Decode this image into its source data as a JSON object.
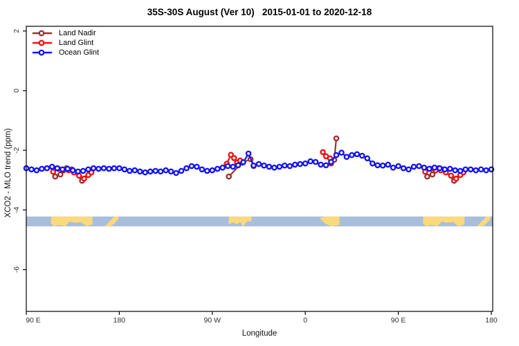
{
  "chart_data": {
    "type": "line",
    "title": "35S-30S August (Ver 10)   2015-01-01 to 2020-12-18",
    "xlabel": "Longitude",
    "ylabel": "XCO2 - MLO trend (ppm)",
    "x_axis": {
      "xlim": [
        90,
        540
      ],
      "note": "longitude axis spans 450 deg wrapping eastward from 90E through 180, 90W, 0, 90E to 180",
      "ticks": [
        {
          "lon": 90,
          "label": "90 E"
        },
        {
          "lon": 180,
          "label": "180"
        },
        {
          "lon": 270,
          "label": "90 W"
        },
        {
          "lon": 360,
          "label": "0"
        },
        {
          "lon": 450,
          "label": "90 E"
        },
        {
          "lon": 540,
          "label": "180"
        }
      ]
    },
    "y_axis": {
      "ylim": [
        -7.4,
        2.16
      ],
      "ticks": [
        {
          "v": 2,
          "label": "2"
        },
        {
          "v": 0,
          "label": "0"
        },
        {
          "v": -2,
          "label": "-2"
        },
        {
          "v": -4,
          "label": "-4"
        },
        {
          "v": -6,
          "label": "-6"
        }
      ]
    },
    "legend": {
      "position": "top-left",
      "entries": [
        "Land Nadir",
        "Land Glint",
        "Ocean Glint"
      ]
    },
    "series": [
      {
        "name": "Land Nadir",
        "color": "#9b3030",
        "clusters": [
          [
            [
              118,
              -2.88
            ],
            [
              123,
              -2.81
            ],
            [
              129,
              -2.6
            ],
            [
              134,
              -2.64
            ],
            [
              144,
              -3.02
            ]
          ],
          [
            [
              286,
              -2.88
            ],
            [
              299,
              -2.41
            ],
            [
              307,
              -2.3
            ],
            [
              310,
              -2.53
            ]
          ],
          [
            [
              385,
              -2.44
            ],
            [
              388,
              -2.32
            ],
            [
              390,
              -1.6
            ]
          ],
          [
            [
              478,
              -2.88
            ],
            [
              483,
              -2.81
            ],
            [
              489,
              -2.6
            ],
            [
              494,
              -2.64
            ],
            [
              504,
              -3.02
            ]
          ]
        ]
      },
      {
        "name": "Land Glint",
        "color": "#ee1111",
        "clusters": [
          [
            [
              116,
              -2.72
            ],
            [
              121,
              -2.62
            ],
            [
              126,
              -2.67
            ],
            [
              131,
              -2.67
            ],
            [
              136,
              -2.74
            ],
            [
              141,
              -2.85
            ],
            [
              146,
              -2.95
            ],
            [
              150,
              -2.83
            ],
            [
              153,
              -2.74
            ]
          ],
          [
            [
              284,
              -2.45
            ],
            [
              288,
              -2.15
            ],
            [
              291,
              -2.26
            ],
            [
              294,
              -2.41
            ],
            [
              297,
              -2.34
            ]
          ],
          [
            [
              377,
              -2.06
            ],
            [
              380,
              -2.2
            ],
            [
              384,
              -2.27
            ]
          ],
          [
            [
              476,
              -2.72
            ],
            [
              481,
              -2.62
            ],
            [
              486,
              -2.67
            ],
            [
              491,
              -2.67
            ],
            [
              496,
              -2.74
            ],
            [
              501,
              -2.85
            ],
            [
              506,
              -2.95
            ],
            [
              510,
              -2.83
            ],
            [
              513,
              -2.74
            ]
          ]
        ]
      },
      {
        "name": "Ocean Glint",
        "color": "#1414ee",
        "clusters": [
          [
            [
              90,
              -2.6
            ],
            [
              95,
              -2.64
            ],
            [
              100,
              -2.67
            ],
            [
              105,
              -2.62
            ],
            [
              110,
              -2.6
            ],
            [
              115,
              -2.55
            ],
            [
              120,
              -2.6
            ],
            [
              125,
              -2.64
            ],
            [
              130,
              -2.62
            ],
            [
              135,
              -2.67
            ],
            [
              140,
              -2.71
            ],
            [
              145,
              -2.69
            ],
            [
              150,
              -2.64
            ],
            [
              155,
              -2.6
            ],
            [
              160,
              -2.62
            ],
            [
              165,
              -2.6
            ],
            [
              170,
              -2.62
            ],
            [
              175,
              -2.6
            ],
            [
              180,
              -2.6
            ],
            [
              185,
              -2.64
            ],
            [
              190,
              -2.69
            ],
            [
              195,
              -2.67
            ],
            [
              200,
              -2.71
            ],
            [
              205,
              -2.74
            ],
            [
              210,
              -2.71
            ],
            [
              215,
              -2.69
            ],
            [
              220,
              -2.71
            ],
            [
              225,
              -2.67
            ],
            [
              230,
              -2.71
            ],
            [
              235,
              -2.76
            ],
            [
              240,
              -2.69
            ],
            [
              245,
              -2.6
            ],
            [
              250,
              -2.53
            ],
            [
              255,
              -2.55
            ],
            [
              260,
              -2.64
            ],
            [
              265,
              -2.69
            ],
            [
              270,
              -2.67
            ],
            [
              275,
              -2.62
            ],
            [
              280,
              -2.58
            ],
            [
              285,
              -2.53
            ],
            [
              290,
              -2.55
            ],
            [
              295,
              -2.5
            ],
            [
              300,
              -2.4
            ],
            [
              305,
              -2.11
            ],
            [
              310,
              -2.51
            ],
            [
              315,
              -2.46
            ],
            [
              320,
              -2.51
            ],
            [
              325,
              -2.55
            ],
            [
              330,
              -2.58
            ],
            [
              335,
              -2.55
            ],
            [
              340,
              -2.51
            ],
            [
              345,
              -2.53
            ],
            [
              350,
              -2.48
            ],
            [
              355,
              -2.46
            ],
            [
              360,
              -2.44
            ],
            [
              365,
              -2.37
            ],
            [
              370,
              -2.39
            ],
            [
              375,
              -2.48
            ],
            [
              380,
              -2.5
            ],
            [
              385,
              -2.39
            ],
            [
              390,
              -2.16
            ],
            [
              395,
              -2.08
            ],
            [
              400,
              -2.22
            ],
            [
              405,
              -2.16
            ],
            [
              410,
              -2.13
            ],
            [
              415,
              -2.18
            ],
            [
              420,
              -2.27
            ],
            [
              425,
              -2.44
            ],
            [
              430,
              -2.5
            ],
            [
              435,
              -2.51
            ],
            [
              440,
              -2.48
            ],
            [
              445,
              -2.58
            ],
            [
              450,
              -2.53
            ],
            [
              455,
              -2.6
            ],
            [
              460,
              -2.64
            ],
            [
              465,
              -2.55
            ],
            [
              470,
              -2.53
            ],
            [
              475,
              -2.58
            ],
            [
              480,
              -2.62
            ],
            [
              485,
              -2.58
            ],
            [
              490,
              -2.6
            ],
            [
              495,
              -2.64
            ],
            [
              500,
              -2.62
            ],
            [
              505,
              -2.67
            ],
            [
              510,
              -2.69
            ],
            [
              515,
              -2.64
            ],
            [
              520,
              -2.64
            ],
            [
              525,
              -2.67
            ],
            [
              530,
              -2.64
            ],
            [
              535,
              -2.67
            ],
            [
              540,
              -2.64
            ]
          ]
        ]
      }
    ],
    "land_ocean_band": {
      "ocean_color": "#a9bedb",
      "land_color": "#fbd97e",
      "value_top": -4.22,
      "value_bottom": -4.55,
      "land_patches": [
        {
          "region": "Australia",
          "from": 114,
          "to": 154,
          "poly": [
            [
              0,
              0
            ],
            [
              1,
              0
            ],
            [
              1,
              0.8
            ],
            [
              0.86,
              1
            ],
            [
              0.72,
              0.55
            ],
            [
              0.58,
              0.65
            ],
            [
              0.45,
              0.5
            ],
            [
              0.34,
              1
            ],
            [
              0.18,
              0.85
            ],
            [
              0.08,
              1
            ],
            [
              0,
              0.75
            ]
          ]
        },
        {
          "region": "New Zealand",
          "from": 166,
          "to": 179,
          "poly": [
            [
              0,
              1
            ],
            [
              0.35,
              0.5
            ],
            [
              0.7,
              0
            ],
            [
              1,
              0
            ],
            [
              1,
              0.3
            ],
            [
              0.55,
              0.9
            ],
            [
              0.3,
              1
            ]
          ]
        },
        {
          "region": "South America",
          "from": 286,
          "to": 308,
          "poly": [
            [
              0,
              0
            ],
            [
              1,
              0
            ],
            [
              1,
              0.45
            ],
            [
              0.8,
              0.5
            ],
            [
              0.62,
              1
            ],
            [
              0.5,
              0.55
            ],
            [
              0.35,
              0.8
            ],
            [
              0.18,
              0.6
            ],
            [
              0,
              0.8
            ]
          ]
        },
        {
          "region": "Southern Africa",
          "from": 374,
          "to": 393,
          "poly": [
            [
              0,
              0.15
            ],
            [
              0.3,
              0
            ],
            [
              1,
              0
            ],
            [
              1,
              0.85
            ],
            [
              0.6,
              1
            ],
            [
              0.25,
              0.7
            ]
          ]
        },
        {
          "region": "Australia",
          "from": 474,
          "to": 514,
          "poly": [
            [
              0,
              0
            ],
            [
              1,
              0
            ],
            [
              1,
              0.8
            ],
            [
              0.86,
              1
            ],
            [
              0.72,
              0.55
            ],
            [
              0.58,
              0.65
            ],
            [
              0.45,
              0.5
            ],
            [
              0.34,
              1
            ],
            [
              0.18,
              0.85
            ],
            [
              0.08,
              1
            ],
            [
              0,
              0.75
            ]
          ]
        },
        {
          "region": "New Zealand",
          "from": 526,
          "to": 539,
          "poly": [
            [
              0,
              1
            ],
            [
              0.35,
              0.5
            ],
            [
              0.7,
              0
            ],
            [
              1,
              0
            ],
            [
              1,
              0.3
            ],
            [
              0.55,
              0.9
            ],
            [
              0.3,
              1
            ]
          ]
        }
      ]
    },
    "frame_color": "#000000",
    "tick_text_color": "#303030"
  }
}
